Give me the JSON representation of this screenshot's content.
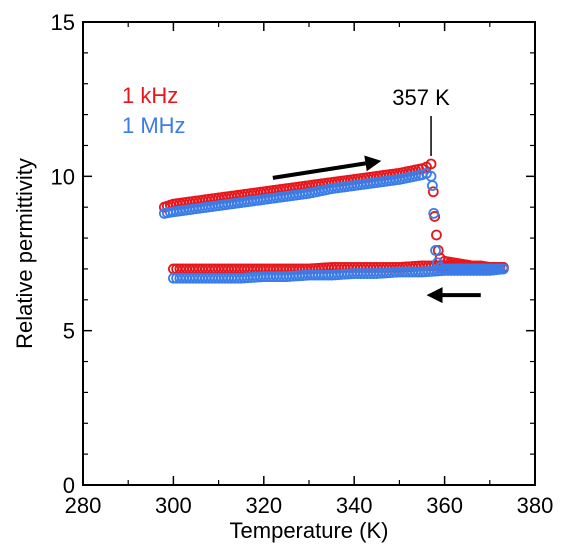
{
  "chart_data": {
    "type": "scatter",
    "title": "",
    "xlabel": "Temperature (K)",
    "ylabel": "Relative permittivity",
    "xlim": [
      280,
      380
    ],
    "ylim": [
      0,
      15
    ],
    "x_ticks": [
      "280",
      "300",
      "320",
      "340",
      "360",
      "380"
    ],
    "y_ticks": [
      "0",
      "5",
      "10",
      "15"
    ],
    "grid": false,
    "legend_position": "top-left",
    "series": [
      {
        "name": "1 kHz",
        "color": "#e8161b",
        "marker": "open-circle",
        "segments": [
          {
            "label": "heating",
            "x": [
              298,
              300,
              305,
              310,
              315,
              320,
              325,
              330,
              335,
              340,
              345,
              350,
              355,
              356,
              357
            ],
            "y": [
              9.0,
              9.1,
              9.2,
              9.3,
              9.4,
              9.5,
              9.6,
              9.7,
              9.8,
              9.9,
              10.0,
              10.1,
              10.25,
              10.3,
              10.4
            ]
          },
          {
            "label": "transition",
            "x": [
              357.5,
              357.8,
              358.2,
              358.6,
              359.0
            ],
            "y": [
              9.5,
              8.7,
              8.1,
              7.6,
              7.35
            ]
          },
          {
            "label": "high-temperature",
            "x": [
              360,
              362,
              364,
              366,
              368,
              370,
              372,
              373
            ],
            "y": [
              7.25,
              7.2,
              7.15,
              7.1,
              7.1,
              7.05,
              7.05,
              7.05
            ]
          },
          {
            "label": "cooling",
            "x": [
              373,
              370,
              365,
              360,
              355,
              350,
              345,
              340,
              335,
              330,
              325,
              320,
              315,
              310,
              305,
              300
            ],
            "y": [
              7.05,
              7.05,
              7.1,
              7.1,
              7.1,
              7.05,
              7.05,
              7.05,
              7.05,
              7.0,
              7.0,
              7.0,
              7.0,
              7.0,
              7.0,
              7.0
            ]
          }
        ]
      },
      {
        "name": "1 MHz",
        "color": "#3b7de8",
        "marker": "open-circle",
        "segments": [
          {
            "label": "heating",
            "x": [
              298,
              300,
              305,
              310,
              315,
              320,
              325,
              330,
              335,
              340,
              345,
              350,
              355,
              356,
              357
            ],
            "y": [
              8.8,
              8.85,
              8.95,
              9.05,
              9.15,
              9.25,
              9.35,
              9.45,
              9.6,
              9.7,
              9.8,
              9.9,
              10.05,
              10.1,
              10.0
            ]
          },
          {
            "label": "transition",
            "x": [
              357.3,
              357.6,
              358.0,
              358.4,
              359.0
            ],
            "y": [
              9.7,
              8.8,
              7.6,
              7.2,
              7.05
            ]
          },
          {
            "label": "high-temperature",
            "x": [
              360,
              362,
              364,
              366,
              368,
              370,
              372,
              373
            ],
            "y": [
              7.0,
              7.0,
              7.0,
              7.0,
              7.0,
              7.0,
              7.0,
              7.0
            ]
          },
          {
            "label": "cooling",
            "x": [
              373,
              370,
              365,
              360,
              355,
              350,
              345,
              340,
              335,
              330,
              325,
              320,
              315,
              310,
              305,
              300
            ],
            "y": [
              7.0,
              6.95,
              6.95,
              6.95,
              6.9,
              6.9,
              6.85,
              6.85,
              6.8,
              6.8,
              6.75,
              6.75,
              6.7,
              6.7,
              6.7,
              6.7
            ]
          }
        ]
      }
    ],
    "annotations": [
      {
        "text": "357 K",
        "x": 357,
        "points_to_y": 10.4
      }
    ],
    "arrows": [
      {
        "direction": "right",
        "meaning": "heating"
      },
      {
        "direction": "left",
        "meaning": "cooling"
      }
    ]
  }
}
